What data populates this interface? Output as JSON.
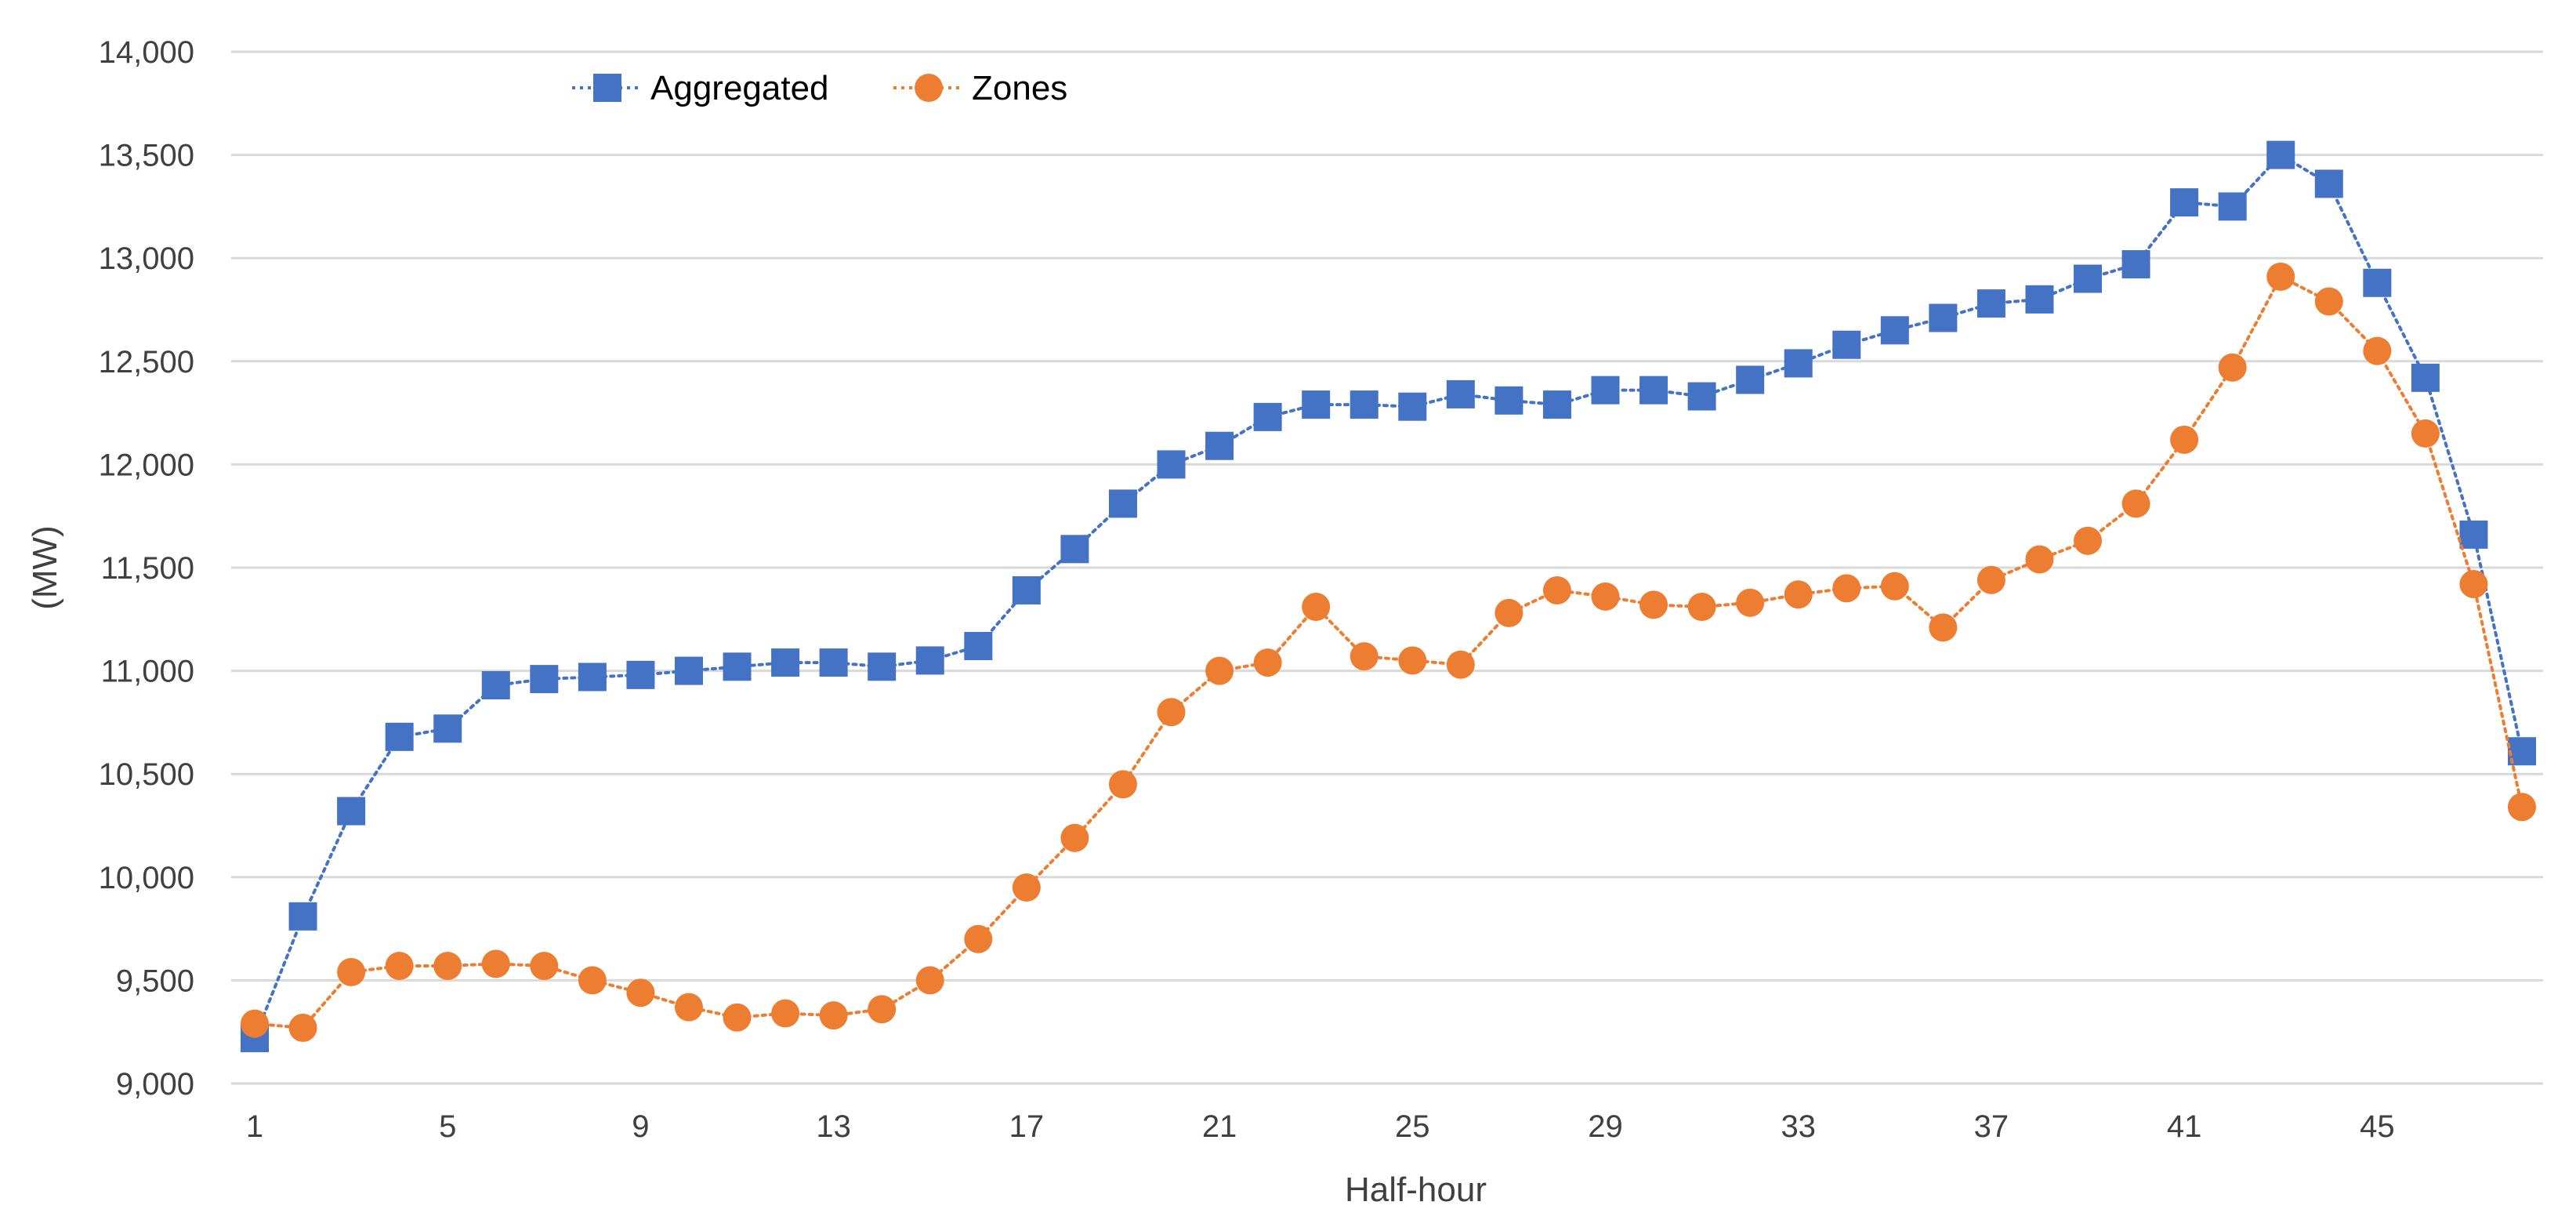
{
  "chart_data": {
    "type": "line",
    "title": "",
    "xlabel": "Half-hour",
    "ylabel": "(MW)",
    "ylim": [
      9000,
      14000
    ],
    "y_ticks": [
      9000,
      9500,
      10000,
      10500,
      11000,
      11500,
      12000,
      12500,
      13000,
      13500,
      14000
    ],
    "y_tick_labels": [
      "9,000",
      "9,500",
      "10,000",
      "10,500",
      "11,000",
      "11,500",
      "12,000",
      "12,500",
      "13,000",
      "13,500",
      "14,000"
    ],
    "x_ticks": [
      1,
      5,
      9,
      13,
      17,
      21,
      25,
      29,
      33,
      37,
      41,
      45
    ],
    "x_tick_labels": [
      "1",
      "5",
      "9",
      "13",
      "17",
      "21",
      "25",
      "29",
      "33",
      "37",
      "41",
      "45"
    ],
    "xlim": [
      1,
      48
    ],
    "grid": "horizontal",
    "legend_position": "top-left",
    "x": [
      1,
      2,
      3,
      4,
      5,
      6,
      7,
      8,
      9,
      10,
      11,
      12,
      13,
      14,
      15,
      16,
      17,
      18,
      19,
      20,
      21,
      22,
      23,
      24,
      25,
      26,
      27,
      28,
      29,
      30,
      31,
      32,
      33,
      34,
      35,
      36,
      37,
      38,
      39,
      40,
      41,
      42,
      43,
      44,
      45,
      46,
      47,
      48
    ],
    "series": [
      {
        "name": "Aggregated",
        "color": "#4472C4",
        "marker": "square",
        "line": "dotted",
        "values": [
          9220,
          9810,
          10320,
          10680,
          10720,
          10930,
          10960,
          10970,
          10980,
          11000,
          11020,
          11040,
          11040,
          11020,
          11050,
          11120,
          11390,
          11590,
          11810,
          12000,
          12090,
          12230,
          12290,
          12290,
          12280,
          12340,
          12310,
          12290,
          12360,
          12360,
          12330,
          12410,
          12490,
          12580,
          12650,
          12710,
          12780,
          12800,
          12900,
          12970,
          13270,
          13250,
          13500,
          13360,
          12880,
          12420,
          11660,
          10610
        ]
      },
      {
        "name": "Zones",
        "color": "#ED7D31",
        "marker": "circle",
        "line": "dotted",
        "values": [
          9290,
          9270,
          9540,
          9570,
          9570,
          9580,
          9570,
          9500,
          9440,
          9370,
          9320,
          9340,
          9330,
          9360,
          9500,
          9700,
          9950,
          10190,
          10450,
          10800,
          11000,
          11040,
          11310,
          11070,
          11050,
          11030,
          11280,
          11390,
          11360,
          11320,
          11310,
          11330,
          11370,
          11400,
          11410,
          11210,
          11440,
          11540,
          11630,
          11810,
          12120,
          12470,
          12910,
          12790,
          12550,
          12150,
          11420,
          10340
        ]
      }
    ]
  }
}
